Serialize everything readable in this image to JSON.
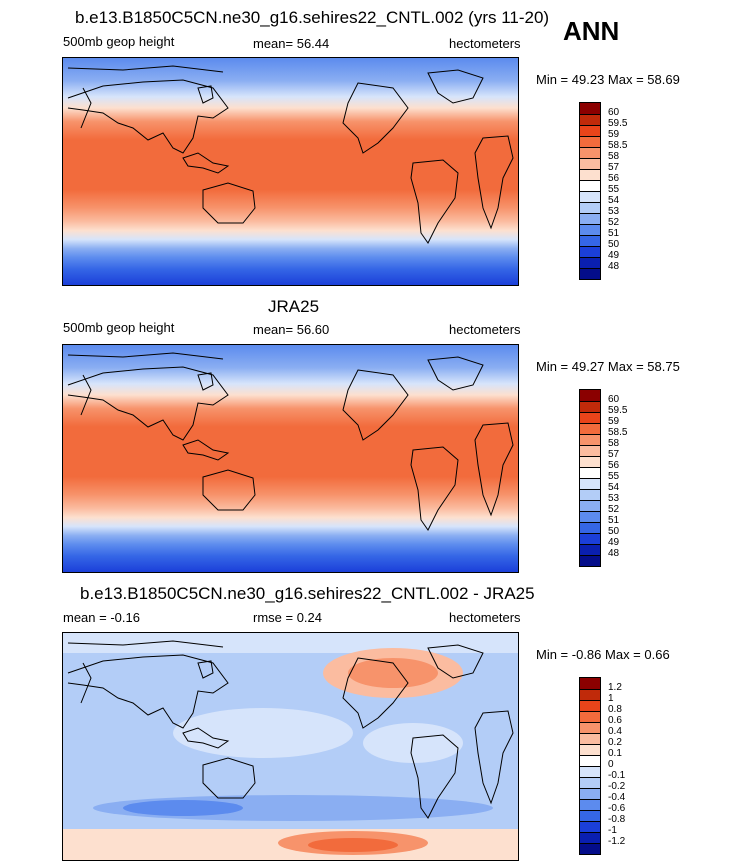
{
  "season": "ANN",
  "panels": [
    {
      "title": "b.e13.B1850C5CN.ne30_g16.sehires22_CNTL.002 (yrs 11-20)",
      "left_label": "500mb geop height",
      "center_label": "mean=  56.44",
      "right_label": "hectometers",
      "minmax": "Min =  49.23 Max =  58.69",
      "kind": "abs",
      "colorbar": {
        "labels": [
          "60",
          "59.5",
          "59",
          "58.5",
          "58",
          "57",
          "56",
          "55",
          "54",
          "53",
          "52",
          "51",
          "50",
          "49",
          "48"
        ],
        "colors": [
          "#8b0000",
          "#c02a0a",
          "#e9441a",
          "#f26b3c",
          "#f7936b",
          "#fbbca0",
          "#fde0cf",
          "#ffffff",
          "#d6e4fb",
          "#b3cdf7",
          "#8aaef2",
          "#5c8bee",
          "#3566e6",
          "#1b3fd9",
          "#0a1fb0",
          "#040d8a"
        ]
      }
    },
    {
      "title": "JRA25",
      "left_label": "500mb geop height",
      "center_label": "mean=  56.60",
      "right_label": "hectometers",
      "minmax": "Min =  49.27 Max =  58.75",
      "kind": "abs",
      "colorbar": {
        "labels": [
          "60",
          "59.5",
          "59",
          "58.5",
          "58",
          "57",
          "56",
          "55",
          "54",
          "53",
          "52",
          "51",
          "50",
          "49",
          "48"
        ],
        "colors": [
          "#8b0000",
          "#c02a0a",
          "#e9441a",
          "#f26b3c",
          "#f7936b",
          "#fbbca0",
          "#fde0cf",
          "#ffffff",
          "#d6e4fb",
          "#b3cdf7",
          "#8aaef2",
          "#5c8bee",
          "#3566e6",
          "#1b3fd9",
          "#0a1fb0",
          "#040d8a"
        ]
      }
    },
    {
      "title": "b.e13.B1850C5CN.ne30_g16.sehires22_CNTL.002 - JRA25",
      "left_label": "mean =  -0.16",
      "center_label": "rmse =   0.24",
      "right_label": "hectometers",
      "minmax": "Min =  -0.86 Max =   0.66",
      "kind": "diff",
      "colorbar": {
        "labels": [
          "1.2",
          "1",
          "0.8",
          "0.6",
          "0.4",
          "0.2",
          "0.1",
          "0",
          "-0.1",
          "-0.2",
          "-0.4",
          "-0.6",
          "-0.8",
          "-1",
          "-1.2"
        ],
        "colors": [
          "#8b0000",
          "#c02a0a",
          "#e9441a",
          "#f26b3c",
          "#f7936b",
          "#fbbca0",
          "#fde0cf",
          "#ffffff",
          "#d6e4fb",
          "#b3cdf7",
          "#8aaef2",
          "#5c8bee",
          "#3566e6",
          "#1b3fd9",
          "#0a1fb0",
          "#040d8a"
        ]
      }
    }
  ]
}
